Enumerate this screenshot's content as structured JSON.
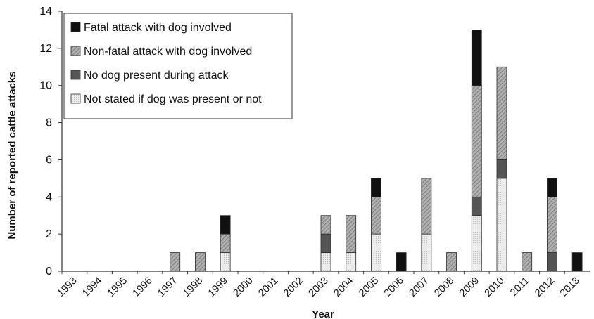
{
  "chart_data": {
    "type": "bar",
    "stacked": true,
    "title": "",
    "xlabel": "Year",
    "ylabel": "Number of reported cattle attacks",
    "ylim": [
      0,
      14
    ],
    "yticks": [
      0,
      2,
      4,
      6,
      8,
      10,
      12,
      14
    ],
    "grid": false,
    "legend_position": "top-left",
    "categories": [
      "1993",
      "1994",
      "1995",
      "1996",
      "1997",
      "1998",
      "1999",
      "2000",
      "2001",
      "2002",
      "2003",
      "2004",
      "2005",
      "2006",
      "2007",
      "2008",
      "2009",
      "2010",
      "2011",
      "2012",
      "2013"
    ],
    "series": [
      {
        "name": "Not stated if dog was present or not",
        "color": "#e2e2e2",
        "pattern": "dots",
        "values": [
          0,
          0,
          0,
          0,
          0,
          0,
          1,
          0,
          0,
          0,
          1,
          1,
          2,
          0,
          2,
          0,
          3,
          5,
          0,
          0,
          0
        ]
      },
      {
        "name": "No dog present during attack",
        "color": "#555555",
        "pattern": "solid-dark",
        "values": [
          0,
          0,
          0,
          0,
          0,
          0,
          0,
          0,
          0,
          0,
          1,
          0,
          0,
          0,
          0,
          0,
          1,
          1,
          0,
          1,
          0
        ]
      },
      {
        "name": "Non-fatal attack with dog involved",
        "color": "#9a9a9a",
        "pattern": "hatch",
        "values": [
          0,
          0,
          0,
          0,
          1,
          1,
          1,
          0,
          0,
          0,
          1,
          2,
          2,
          0,
          3,
          1,
          6,
          5,
          1,
          3,
          0
        ]
      },
      {
        "name": "Fatal attack with dog involved",
        "color": "#111111",
        "pattern": "solid-black",
        "values": [
          0,
          0,
          0,
          0,
          0,
          0,
          1,
          0,
          0,
          0,
          0,
          0,
          1,
          1,
          0,
          0,
          3,
          0,
          0,
          1,
          1
        ]
      }
    ],
    "legend_order": [
      3,
      2,
      1,
      0
    ]
  }
}
